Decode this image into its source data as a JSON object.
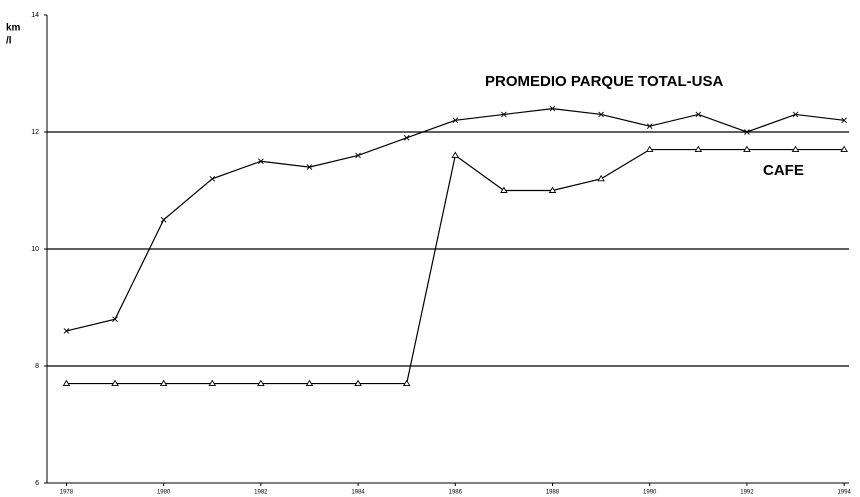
{
  "chart_data": {
    "type": "line",
    "ylabel": [
      "km",
      "/l"
    ],
    "x": [
      1978,
      1979,
      1980,
      1981,
      1982,
      1983,
      1984,
      1985,
      1986,
      1987,
      1988,
      1989,
      1990,
      1991,
      1992,
      1993,
      1994
    ],
    "series": [
      {
        "name": "PROMEDIO PARQUE TOTAL-USA",
        "color": "#000000",
        "marker": "x",
        "values": [
          8.6,
          8.8,
          10.5,
          11.2,
          11.5,
          11.4,
          11.6,
          11.9,
          12.2,
          12.3,
          12.4,
          12.3,
          12.1,
          12.3,
          12.0,
          12.3,
          12.2
        ]
      },
      {
        "name": "CAFE",
        "color": "#000000",
        "marker": "triangle",
        "values": [
          7.7,
          7.7,
          7.7,
          7.7,
          7.7,
          7.7,
          7.7,
          7.7,
          11.6,
          11.0,
          11.0,
          11.2,
          11.7,
          11.7,
          11.7,
          11.7,
          11.7
        ]
      }
    ],
    "xlim": [
      1977.6,
      1994.1
    ],
    "xticks": [
      1978,
      1980,
      1982,
      1984,
      1986,
      1988,
      1990,
      1992,
      1994
    ],
    "ylim": [
      6,
      14
    ],
    "yticks": [
      6,
      8,
      10,
      12,
      14
    ],
    "grid": true
  }
}
